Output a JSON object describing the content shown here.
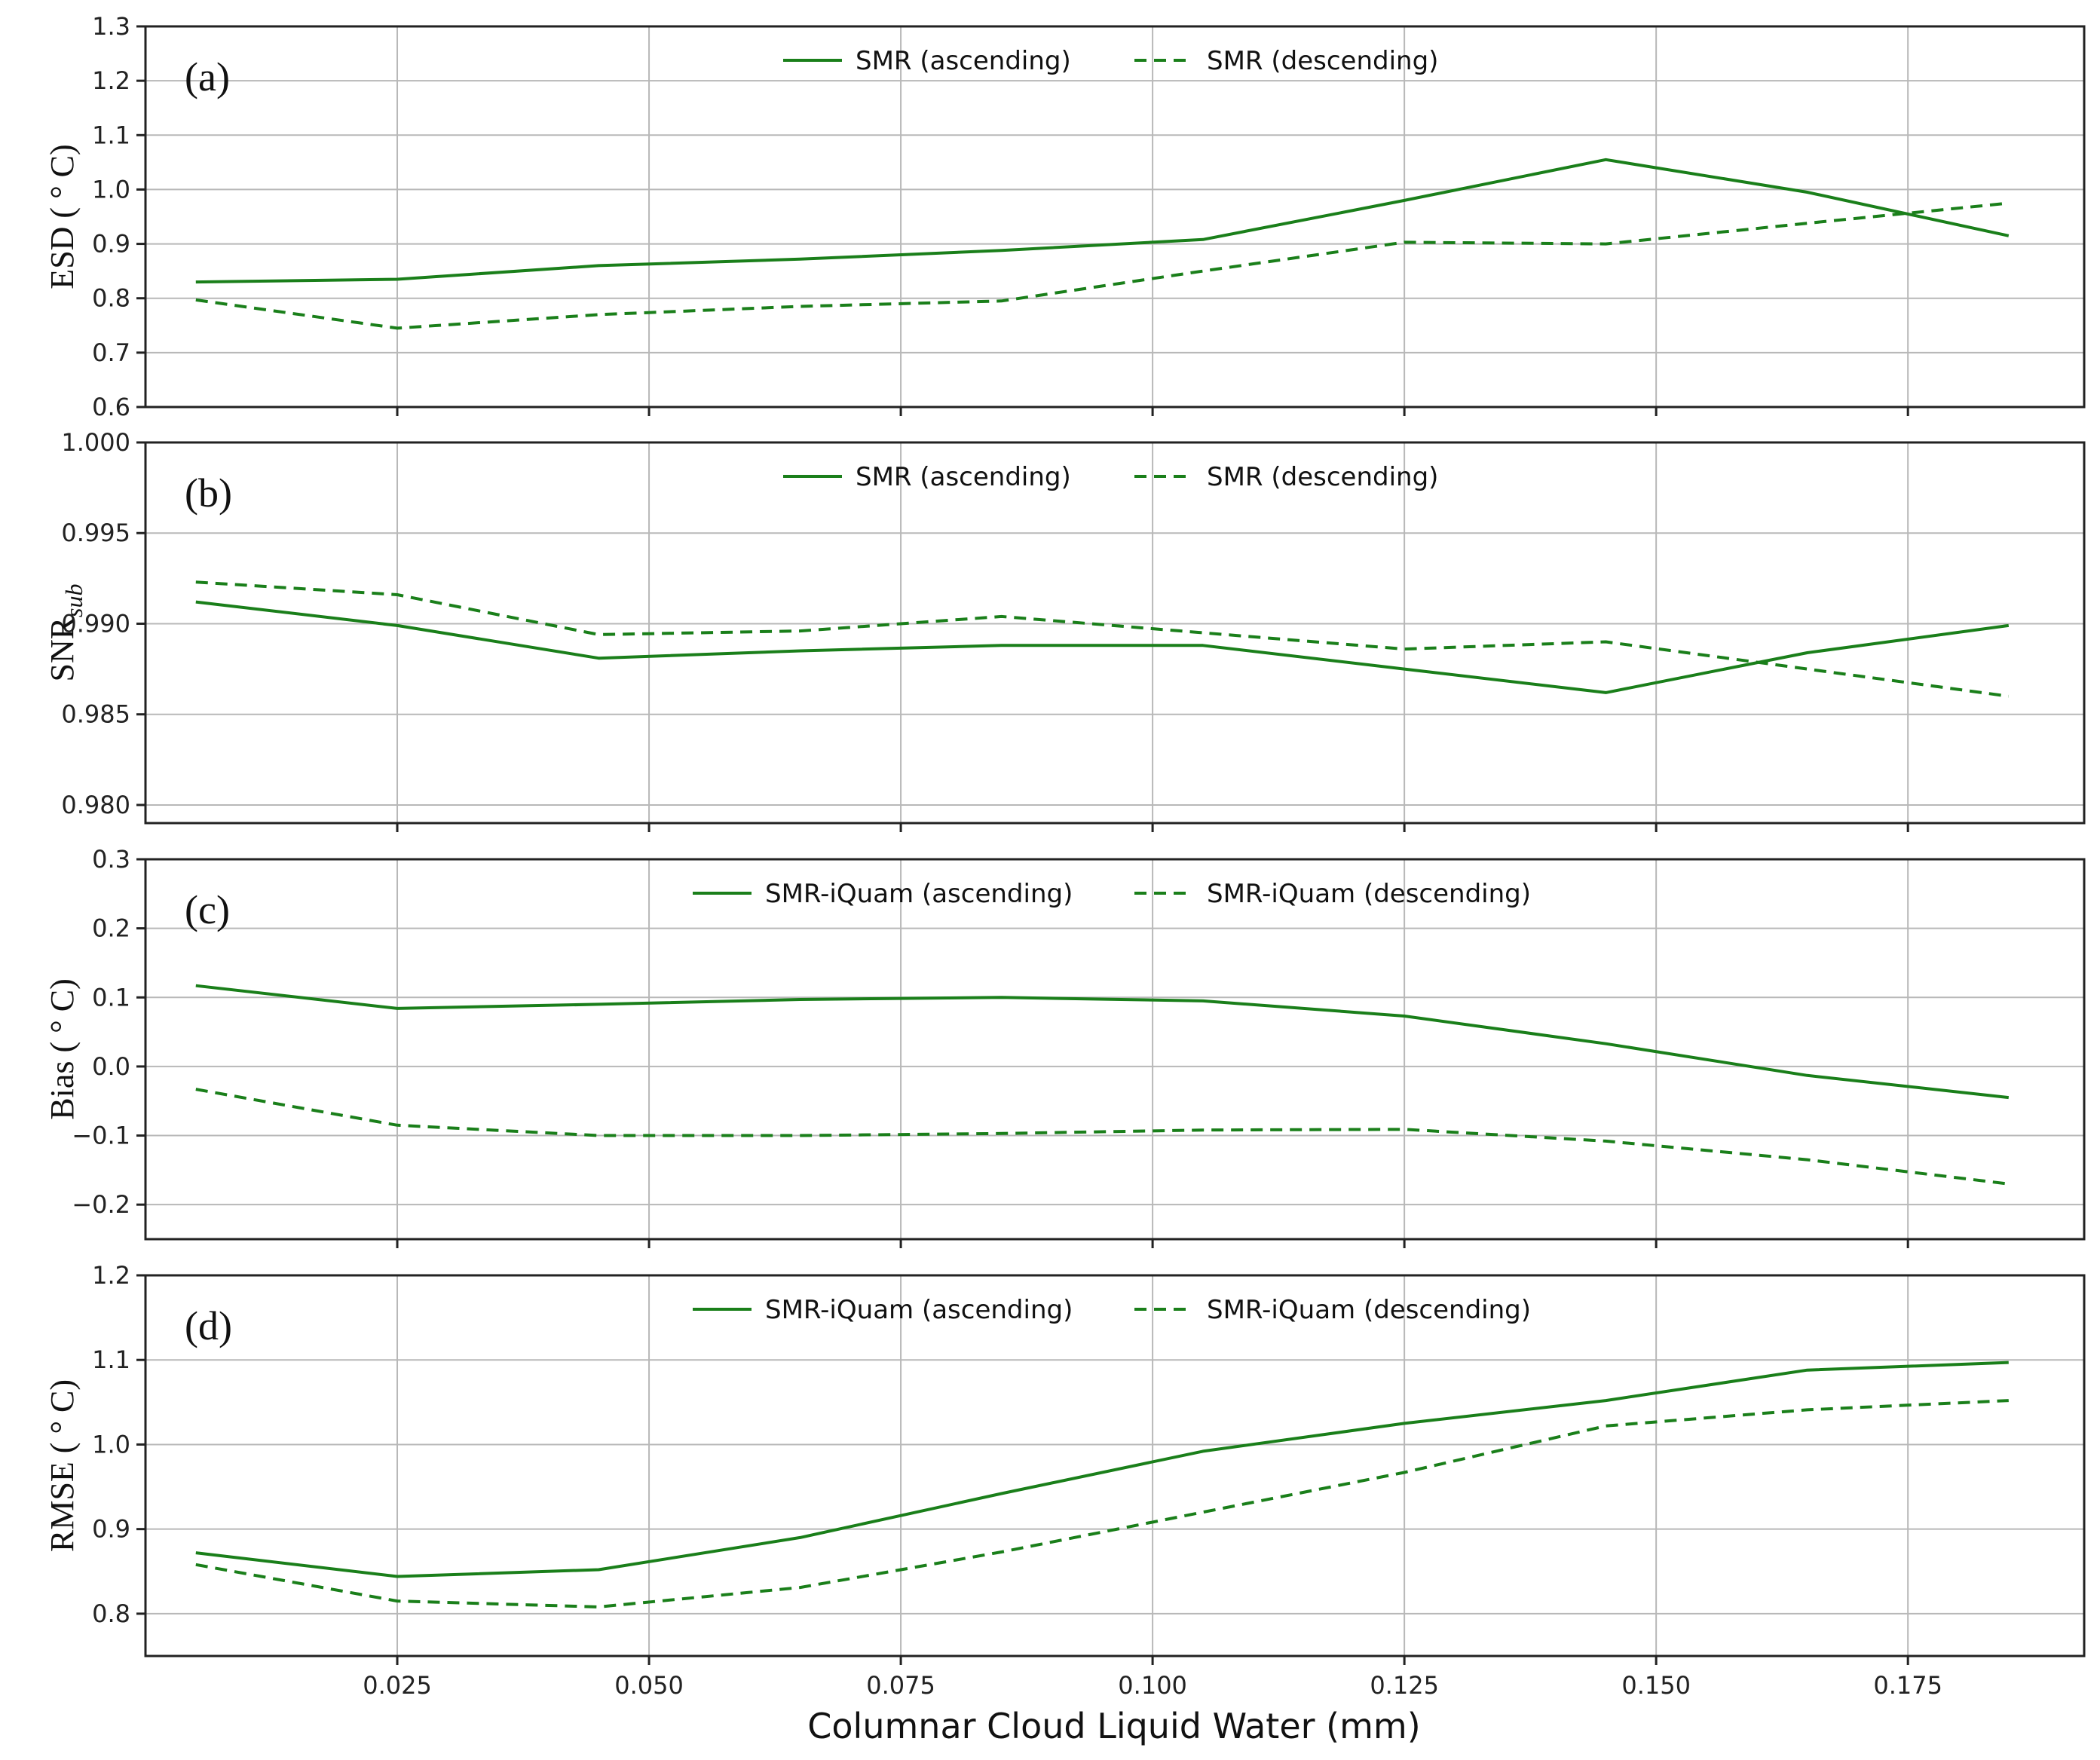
{
  "chart_data": {
    "type": "line",
    "x_axis": {
      "label": "Columnar Cloud Liquid Water (mm)",
      "ticks": [
        "0.025",
        "0.050",
        "0.075",
        "0.100",
        "0.125",
        "0.150",
        "0.175"
      ],
      "range": [
        0.0,
        0.1925
      ]
    },
    "colors": {
      "series": "#1a7f1a"
    },
    "x": [
      0.005,
      0.025,
      0.045,
      0.065,
      0.085,
      0.105,
      0.125,
      0.145,
      0.165,
      0.185
    ],
    "panels": [
      {
        "id": "a",
        "letter": "(a)",
        "ylabel": "ESD ( ° C)",
        "ylim": [
          0.6,
          1.3
        ],
        "yticks": [
          "0.6",
          "0.7",
          "0.8",
          "0.9",
          "1.0",
          "1.1",
          "1.2",
          "1.3"
        ],
        "series": [
          {
            "name": "SMR (ascending)",
            "style": "solid",
            "values": [
              0.83,
              0.835,
              0.86,
              0.872,
              0.888,
              0.908,
              0.98,
              1.055,
              0.995,
              0.915
            ]
          },
          {
            "name": "SMR (descending)",
            "style": "dashed",
            "values": [
              0.797,
              0.745,
              0.77,
              0.785,
              0.795,
              0.85,
              0.903,
              0.9,
              0.938,
              0.975
            ]
          }
        ]
      },
      {
        "id": "b",
        "letter": "(b)",
        "ylabel": "SNR",
        "ylabel_sub": "sub",
        "ylim": [
          0.979,
          1.0
        ],
        "yticks": [
          "0.980",
          "0.985",
          "0.990",
          "0.995",
          "1.000"
        ],
        "series": [
          {
            "name": "SMR (ascending)",
            "style": "solid",
            "values": [
              0.9912,
              0.9899,
              0.9881,
              0.9885,
              0.9888,
              0.9888,
              0.9875,
              0.9862,
              0.9884,
              0.9899
            ]
          },
          {
            "name": "SMR (descending)",
            "style": "dashed",
            "values": [
              0.9923,
              0.9916,
              0.9894,
              0.9896,
              0.9904,
              0.9895,
              0.9886,
              0.989,
              0.9875,
              0.986
            ]
          }
        ]
      },
      {
        "id": "c",
        "letter": "(c)",
        "ylabel": "Bias ( ° C)",
        "ylim": [
          -0.25,
          0.3
        ],
        "yticks": [
          "−0.2",
          "−0.1",
          "0.0",
          "0.1",
          "0.2",
          "0.3"
        ],
        "series": [
          {
            "name": "SMR-iQuam (ascending)",
            "style": "solid",
            "values": [
              0.117,
              0.084,
              0.09,
              0.097,
              0.1,
              0.095,
              0.073,
              0.033,
              -0.013,
              -0.045
            ]
          },
          {
            "name": "SMR-iQuam (descending)",
            "style": "dashed",
            "values": [
              -0.033,
              -0.085,
              -0.1,
              -0.1,
              -0.097,
              -0.092,
              -0.091,
              -0.108,
              -0.135,
              -0.17
            ]
          }
        ]
      },
      {
        "id": "d",
        "letter": "(d)",
        "ylabel": "RMSE ( ° C)",
        "ylim": [
          0.75,
          1.2
        ],
        "yticks": [
          "0.8",
          "0.9",
          "1.0",
          "1.1",
          "1.2"
        ],
        "series": [
          {
            "name": "SMR-iQuam (ascending)",
            "style": "solid",
            "values": [
              0.872,
              0.844,
              0.852,
              0.89,
              0.942,
              0.992,
              1.025,
              1.052,
              1.088,
              1.097
            ]
          },
          {
            "name": "SMR-iQuam (descending)",
            "style": "dashed",
            "values": [
              0.858,
              0.815,
              0.808,
              0.831,
              0.873,
              0.92,
              0.967,
              1.022,
              1.041,
              1.052
            ]
          }
        ]
      }
    ]
  }
}
